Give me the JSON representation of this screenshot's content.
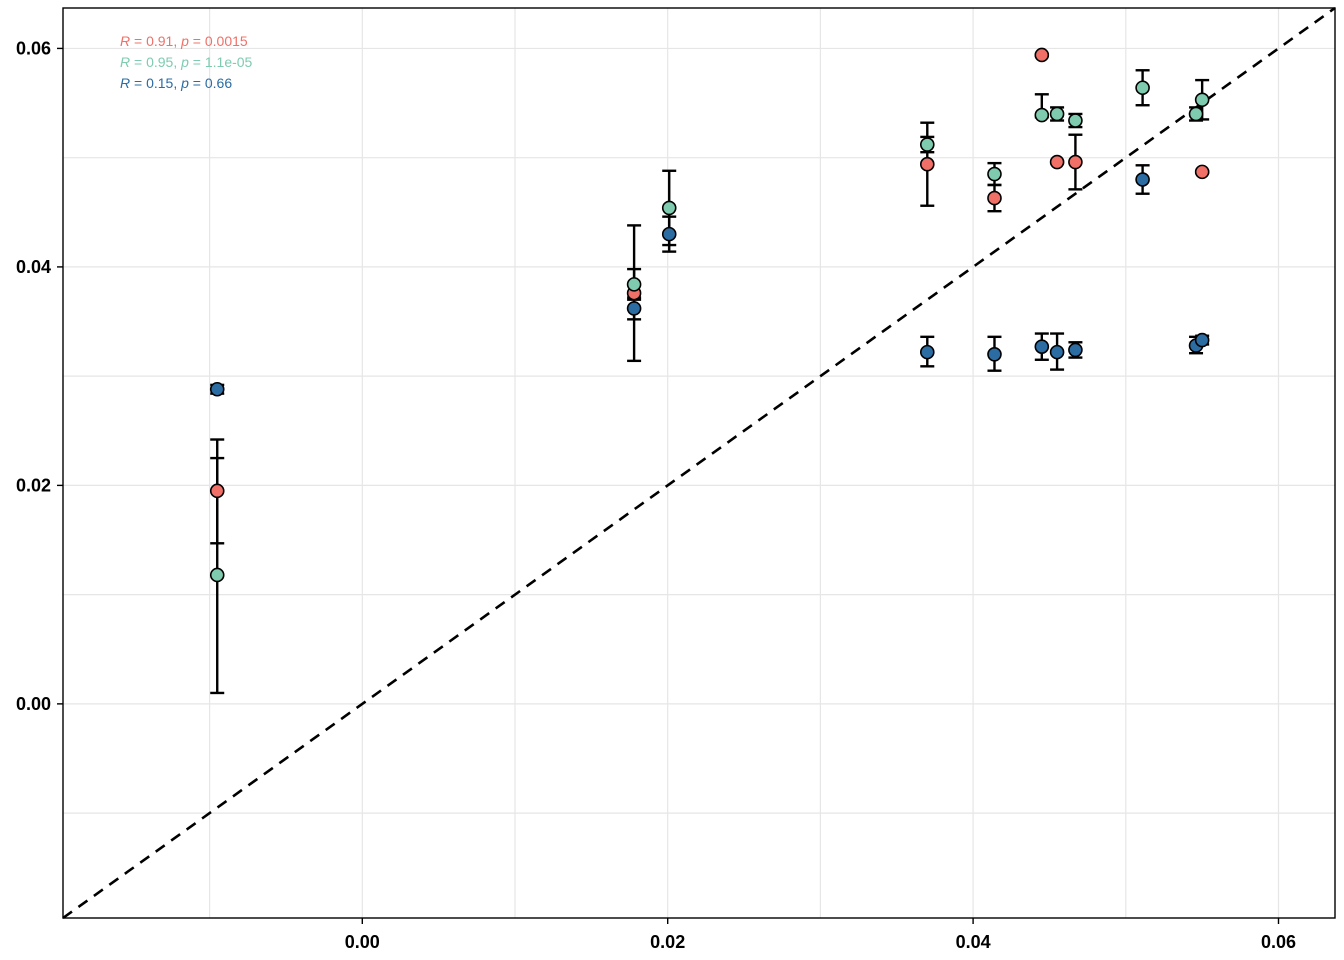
{
  "chart_data": {
    "type": "scatter",
    "xlim": [
      -0.0196,
      0.0637
    ],
    "ylim": [
      -0.0196,
      0.0637
    ],
    "x_ticks": [
      0.0,
      0.02,
      0.04,
      0.06
    ],
    "x_tick_labels": [
      "0.00",
      "0.02",
      "0.04",
      "0.06"
    ],
    "y_ticks": [
      0.0,
      0.02,
      0.04,
      0.06
    ],
    "y_tick_labels": [
      "0.00",
      "0.02",
      "0.04",
      "0.06"
    ],
    "minor_grid": [
      -0.01,
      0.01,
      0.03,
      0.05
    ],
    "grid": true,
    "reference_line": {
      "type": "identity",
      "style": "dashed",
      "color": "#000000"
    },
    "annotations": [
      {
        "r_label": "R",
        "text": " = 0.91, ",
        "p_label": "p",
        "value": " = 0.0015",
        "color": "#f07068"
      },
      {
        "r_label": "R",
        "text": " = 0.95, ",
        "p_label": "p",
        "value": " = 1.1e-05",
        "color": "#7ecbb0"
      },
      {
        "r_label": "R",
        "text": " = 0.15, ",
        "p_label": "p",
        "value": " = 0.66",
        "color": "#2b6ca3"
      }
    ],
    "series": [
      {
        "color": "#f07068",
        "points": [
          {
            "x": -0.0095,
            "y": 0.0195,
            "ymin": 0.0147,
            "ymax": 0.0242
          },
          {
            "x": 0.0178,
            "y": 0.0376,
            "ymin": 0.0314,
            "ymax": 0.0438
          },
          {
            "x": 0.037,
            "y": 0.0494,
            "ymin": 0.0456,
            "ymax": 0.0532
          },
          {
            "x": 0.0414,
            "y": 0.0463,
            "ymin": 0.0451,
            "ymax": 0.0475
          },
          {
            "x": 0.0445,
            "y": 0.0594,
            "ymin": 0.0593,
            "ymax": 0.0595
          },
          {
            "x": 0.0455,
            "y": 0.0496,
            "ymin": 0.0495,
            "ymax": 0.0497
          },
          {
            "x": 0.0467,
            "y": 0.0496,
            "ymin": 0.0471,
            "ymax": 0.0521
          },
          {
            "x": 0.055,
            "y": 0.0487,
            "ymin": 0.0486,
            "ymax": 0.0488
          }
        ]
      },
      {
        "color": "#7ecbb0",
        "points": [
          {
            "x": -0.0095,
            "y": 0.0118,
            "ymin": 0.001,
            "ymax": 0.0225
          },
          {
            "x": 0.0178,
            "y": 0.0384,
            "ymin": 0.037,
            "ymax": 0.0398
          },
          {
            "x": 0.0201,
            "y": 0.0454,
            "ymin": 0.042,
            "ymax": 0.0488
          },
          {
            "x": 0.037,
            "y": 0.0512,
            "ymin": 0.0505,
            "ymax": 0.0519
          },
          {
            "x": 0.0414,
            "y": 0.0485,
            "ymin": 0.0475,
            "ymax": 0.0495
          },
          {
            "x": 0.0445,
            "y": 0.0539,
            "ymin": 0.0537,
            "ymax": 0.0558
          },
          {
            "x": 0.0455,
            "y": 0.054,
            "ymin": 0.0534,
            "ymax": 0.0546
          },
          {
            "x": 0.0467,
            "y": 0.0534,
            "ymin": 0.0528,
            "ymax": 0.054
          },
          {
            "x": 0.0511,
            "y": 0.0564,
            "ymin": 0.0548,
            "ymax": 0.058
          },
          {
            "x": 0.0546,
            "y": 0.054,
            "ymin": 0.0534,
            "ymax": 0.0546
          },
          {
            "x": 0.055,
            "y": 0.0553,
            "ymin": 0.0535,
            "ymax": 0.0571
          }
        ]
      },
      {
        "color": "#2b6ca3",
        "points": [
          {
            "x": -0.0095,
            "y": 0.0288,
            "ymin": 0.0284,
            "ymax": 0.0292
          },
          {
            "x": 0.0178,
            "y": 0.0362,
            "ymin": 0.0352,
            "ymax": 0.0372
          },
          {
            "x": 0.0201,
            "y": 0.043,
            "ymin": 0.0414,
            "ymax": 0.0446
          },
          {
            "x": 0.037,
            "y": 0.0322,
            "ymin": 0.0309,
            "ymax": 0.0336
          },
          {
            "x": 0.0414,
            "y": 0.032,
            "ymin": 0.0305,
            "ymax": 0.0336
          },
          {
            "x": 0.0445,
            "y": 0.0327,
            "ymin": 0.0315,
            "ymax": 0.0339
          },
          {
            "x": 0.0455,
            "y": 0.0322,
            "ymin": 0.0306,
            "ymax": 0.0339
          },
          {
            "x": 0.0467,
            "y": 0.0324,
            "ymin": 0.0317,
            "ymax": 0.0331
          },
          {
            "x": 0.0511,
            "y": 0.048,
            "ymin": 0.0467,
            "ymax": 0.0493
          },
          {
            "x": 0.0546,
            "y": 0.0328,
            "ymin": 0.0321,
            "ymax": 0.0336
          },
          {
            "x": 0.055,
            "y": 0.0333,
            "ymin": 0.0329,
            "ymax": 0.0337
          }
        ]
      }
    ]
  }
}
